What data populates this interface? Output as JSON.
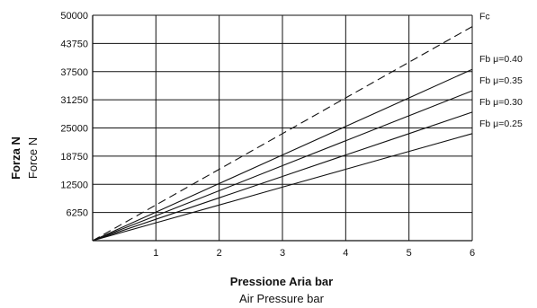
{
  "chart_data": {
    "type": "line",
    "x": [
      0,
      1,
      2,
      3,
      4,
      5,
      6
    ],
    "xlim": [
      0,
      6
    ],
    "ylim": [
      0,
      50000
    ],
    "x_ticks": [
      "1",
      "2",
      "3",
      "4",
      "5",
      "6"
    ],
    "y_ticks": [
      "6250",
      "12500",
      "18750",
      "25000",
      "31250",
      "37500",
      "43750",
      "50000"
    ],
    "ylabel_primary": "Forza N",
    "ylabel_secondary": "Force N",
    "xlabel_primary": "Pressione Aria bar",
    "xlabel_secondary": "Air Pressure bar",
    "grid": true,
    "series": [
      {
        "name": "Fc",
        "values": [
          0,
          7917,
          15833,
          23750,
          31667,
          39583,
          47500
        ],
        "style": "dashed"
      },
      {
        "name": "Fb μ=0.40",
        "values": [
          0,
          6333,
          12667,
          19000,
          25333,
          31667,
          38000
        ],
        "style": "solid"
      },
      {
        "name": "Fb μ=0.35",
        "values": [
          0,
          5542,
          11083,
          16625,
          22167,
          27708,
          33250
        ],
        "style": "solid"
      },
      {
        "name": "Fb μ=0.30",
        "values": [
          0,
          4750,
          9500,
          14250,
          19000,
          23750,
          28500
        ],
        "style": "solid"
      },
      {
        "name": "Fb μ=0.25",
        "values": [
          0,
          3958,
          7917,
          11875,
          15833,
          19792,
          23750
        ],
        "style": "solid"
      }
    ]
  }
}
